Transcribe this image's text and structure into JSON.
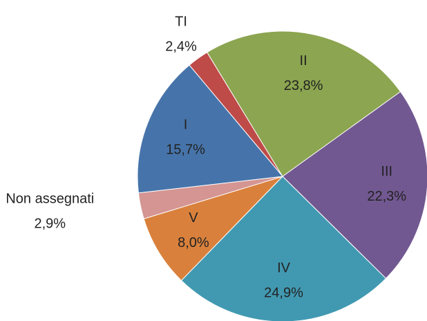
{
  "chart_data": {
    "type": "pie",
    "categories": [
      "TI",
      "II",
      "III",
      "IV",
      "V",
      "Non assegnati",
      "I"
    ],
    "values": [
      2.4,
      23.8,
      22.3,
      24.9,
      8.0,
      2.9,
      15.7
    ],
    "value_labels": [
      "2,4%",
      "23,8%",
      "22,3%",
      "24,9%",
      "8,0%",
      "2,9%",
      "15,7%"
    ],
    "colors": [
      "#be4b48",
      "#8ca550",
      "#725891",
      "#4199b1",
      "#d9813c",
      "#d49593",
      "#4674aa"
    ]
  }
}
